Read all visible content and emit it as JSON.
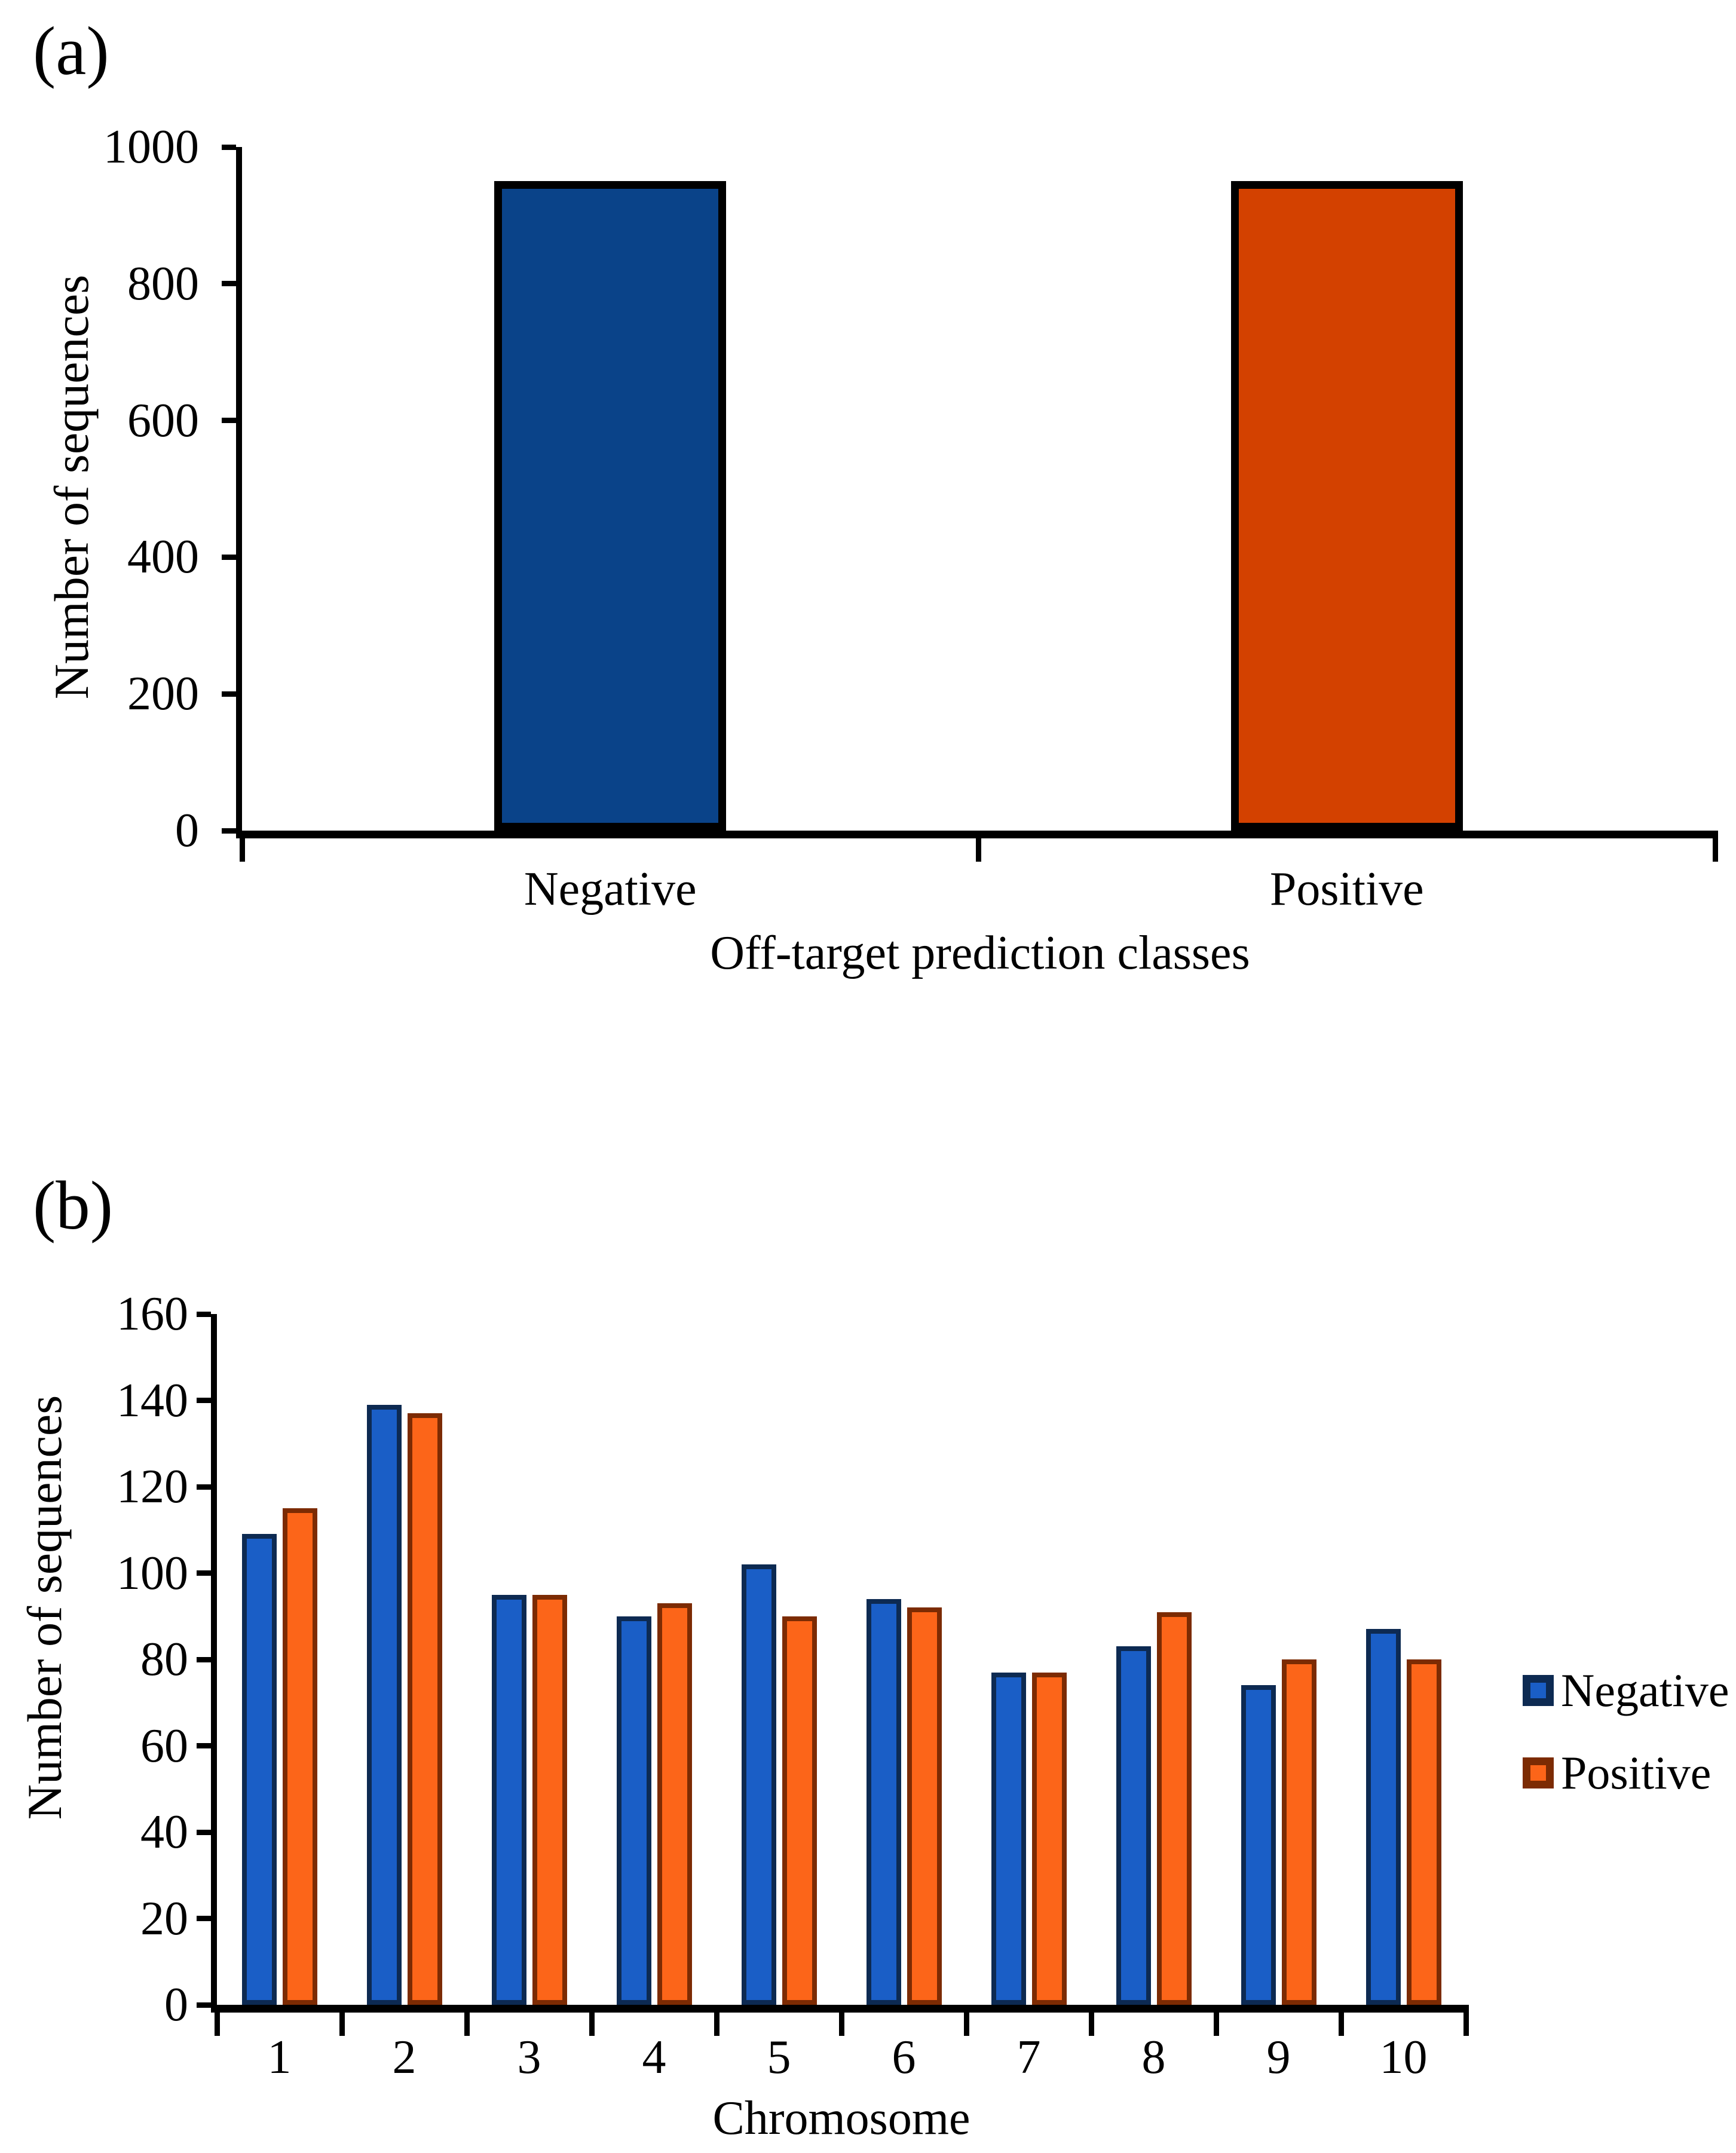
{
  "chart_data": [
    {
      "type": "bar",
      "panel_label": "(a)",
      "categories": [
        "Negative",
        "Positive"
      ],
      "values": [
        950,
        950
      ],
      "bar_colors": [
        {
          "fill": "#0A4389",
          "border": "#000000"
        },
        {
          "fill": "#D34100",
          "border": "#000000"
        }
      ],
      "ylabel": "Number of sequences",
      "xlabel": "Off-target prediction classes",
      "ylim": [
        0,
        1000
      ],
      "ytick_step": 200,
      "yticks": [
        0,
        200,
        400,
        600,
        800,
        1000
      ],
      "grid": false,
      "legend": null
    },
    {
      "type": "bar",
      "panel_label": "(b)",
      "categories": [
        "1",
        "2",
        "3",
        "4",
        "5",
        "6",
        "7",
        "8",
        "9",
        "10"
      ],
      "series": [
        {
          "name": "Negative",
          "values": [
            109,
            139,
            95,
            90,
            102,
            94,
            77,
            83,
            74,
            87
          ],
          "fill": "#1A5EC6",
          "border": "#0D2A52"
        },
        {
          "name": "Positive",
          "values": [
            115,
            137,
            95,
            93,
            90,
            92,
            77,
            91,
            80,
            80
          ],
          "fill": "#FC6519",
          "border": "#7C2B03"
        }
      ],
      "ylabel": "Number of sequences",
      "xlabel": "Chromosome",
      "ylim": [
        0,
        160
      ],
      "ytick_step": 20,
      "yticks": [
        0,
        20,
        40,
        60,
        80,
        100,
        120,
        140,
        160
      ],
      "grid": false,
      "legend": {
        "position": "right",
        "entries": [
          "Negative",
          "Positive"
        ]
      }
    }
  ]
}
